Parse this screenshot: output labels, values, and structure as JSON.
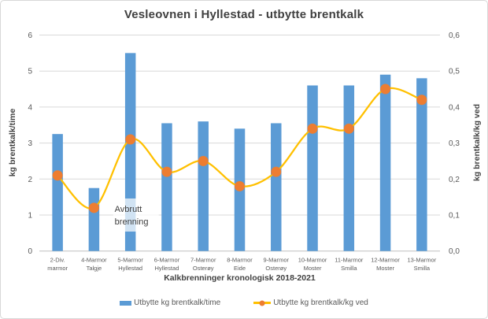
{
  "chart_data": {
    "type": "bar",
    "title": "Vesleovnen i Hyllestad - utbytte brentkalk",
    "xlabel": "Kalkbrenninger kronologisk 2018-2021",
    "ylabel_left": "kg brentkalk/time",
    "ylabel_right": "kg brentkalk/kg ved",
    "categories": [
      "2-Div. marmor",
      "4-Marmor Talgje",
      "5-Marmor Hyllestad",
      "6-Marmor Hyllestad",
      "7-Marmor Osterøy",
      "8-Marmor Eide",
      "9-Marmor Osterøy",
      "10-Marmor Moster",
      "11-Marmor Smilla",
      "12-Marmor Moster",
      "13-Marmor Smilla"
    ],
    "series": [
      {
        "name": "Utbytte kg brentkalk/time",
        "type": "bar",
        "axis": "left",
        "color": "#5B9BD5",
        "values": [
          3.25,
          1.75,
          5.5,
          3.55,
          3.6,
          3.4,
          3.55,
          4.6,
          4.6,
          4.9,
          4.8
        ]
      },
      {
        "name": "Utbytte kg brentkalk/kg ved",
        "type": "line",
        "axis": "right",
        "line_color": "#FFC000",
        "marker_color": "#ED7D31",
        "values": [
          0.21,
          0.12,
          0.31,
          0.22,
          0.25,
          0.18,
          0.22,
          0.34,
          0.34,
          0.45,
          0.42
        ]
      }
    ],
    "ylim_left": [
      0,
      6
    ],
    "ylim_right": [
      0,
      0.6
    ],
    "yticks_left": [
      "0",
      "1",
      "2",
      "3",
      "4",
      "5",
      "6"
    ],
    "yticks_right": [
      "0,0",
      "0,1",
      "0,2",
      "0,3",
      "0,4",
      "0,5",
      "0,6"
    ],
    "grid": true,
    "grid_color": "#D9D9D9",
    "axis_line_color": "#BFBFBF",
    "tick_label_color": "#595959",
    "legend_position": "bottom",
    "annotation": {
      "lines": [
        "Avbrutt",
        "brenning"
      ],
      "category_index": 2,
      "color": "#3d3d3d"
    }
  }
}
